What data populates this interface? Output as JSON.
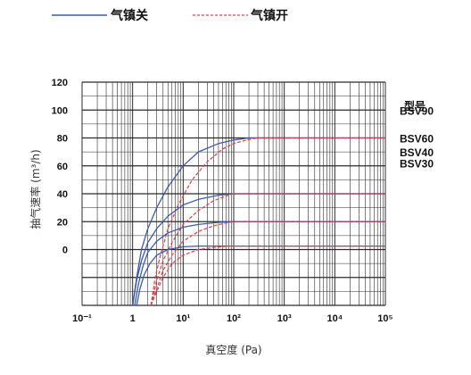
{
  "colors": {
    "off": "#3b5aa8",
    "on": "#e0424a",
    "grid": "#2b2b2b"
  },
  "chart_data": {
    "type": "line",
    "xscale": "log",
    "xlim": [
      0.1,
      100000
    ],
    "ylim": [
      -40,
      120
    ],
    "xticklabels": [
      "10⁻¹",
      "1",
      "10¹",
      "10²",
      "10³",
      "10⁴",
      "10⁵"
    ],
    "yticklabels": [
      {
        "label": "120",
        "value": 120
      },
      {
        "label": "100",
        "value": 100
      },
      {
        "label": "80",
        "value": 80
      },
      {
        "label": "60",
        "value": 60
      },
      {
        "label": "40",
        "value": 40
      },
      {
        "label": "20",
        "value": 20
      },
      {
        "label": "0",
        "value": 0
      }
    ],
    "xlabel": "真空度 (Pa)",
    "ylabel": "抽气速率 (m³/h)",
    "legend": {
      "placement": "top-left",
      "off_label": "气镇关",
      "on_label": "气镇开"
    },
    "model_header": "型号",
    "models": [
      {
        "label": "BSV90",
        "value": 100
      },
      {
        "label": "BSV60",
        "value": 80
      },
      {
        "label": "BSV40",
        "value": 70
      },
      {
        "label": "BSV30",
        "value": 62
      }
    ],
    "series": [
      {
        "gas_ballast": "off",
        "points": [
          [
            1.0,
            -40
          ],
          [
            1.2,
            -20
          ],
          [
            1.5,
            0
          ],
          [
            2,
            15
          ],
          [
            3,
            30
          ],
          [
            5,
            45
          ],
          [
            10,
            60
          ],
          [
            20,
            70
          ],
          [
            50,
            76
          ],
          [
            100,
            78.5
          ],
          [
            200,
            80
          ],
          [
            100000,
            80
          ]
        ]
      },
      {
        "gas_ballast": "on",
        "points": [
          [
            2.3,
            -40
          ],
          [
            2.8,
            -20
          ],
          [
            3.5,
            -5
          ],
          [
            5,
            15
          ],
          [
            8,
            32
          ],
          [
            15,
            50
          ],
          [
            30,
            63
          ],
          [
            60,
            72
          ],
          [
            100,
            76
          ],
          [
            200,
            79
          ],
          [
            300,
            80
          ],
          [
            100000,
            80
          ]
        ]
      },
      {
        "gas_ballast": "off",
        "points": [
          [
            1.0,
            -40
          ],
          [
            1.2,
            -22
          ],
          [
            1.5,
            -8
          ],
          [
            2,
            5
          ],
          [
            3,
            15
          ],
          [
            5,
            24
          ],
          [
            10,
            32
          ],
          [
            20,
            36
          ],
          [
            50,
            39
          ],
          [
            100,
            40
          ],
          [
            100000,
            40
          ]
        ]
      },
      {
        "gas_ballast": "on",
        "points": [
          [
            2.3,
            -40
          ],
          [
            3,
            -22
          ],
          [
            4,
            -8
          ],
          [
            6,
            5
          ],
          [
            10,
            18
          ],
          [
            20,
            28
          ],
          [
            40,
            35
          ],
          [
            80,
            39
          ],
          [
            100,
            40
          ],
          [
            100000,
            40
          ]
        ]
      },
      {
        "gas_ballast": "off",
        "points": [
          [
            1.1,
            -40
          ],
          [
            1.3,
            -25
          ],
          [
            1.6,
            -12
          ],
          [
            2,
            -2
          ],
          [
            3,
            6
          ],
          [
            5,
            12
          ],
          [
            10,
            16
          ],
          [
            20,
            18
          ],
          [
            50,
            19.5
          ],
          [
            100,
            20
          ],
          [
            100000,
            20
          ]
        ]
      },
      {
        "gas_ballast": "on",
        "points": [
          [
            2.3,
            -40
          ],
          [
            3,
            -28
          ],
          [
            4,
            -15
          ],
          [
            6,
            -4
          ],
          [
            10,
            6
          ],
          [
            20,
            13
          ],
          [
            40,
            17
          ],
          [
            70,
            19
          ],
          [
            100,
            20
          ],
          [
            100000,
            20
          ]
        ]
      },
      {
        "gas_ballast": "off",
        "points": [
          [
            1.2,
            -40
          ],
          [
            1.4,
            -28
          ],
          [
            1.7,
            -18
          ],
          [
            2.2,
            -10
          ],
          [
            3,
            -4
          ],
          [
            5,
            0
          ],
          [
            10,
            2
          ],
          [
            20,
            2.5
          ],
          [
            100000,
            2.5
          ]
        ]
      },
      {
        "gas_ballast": "on",
        "points": [
          [
            2.3,
            -40
          ],
          [
            3,
            -30
          ],
          [
            4,
            -20
          ],
          [
            6,
            -10
          ],
          [
            10,
            -4
          ],
          [
            20,
            0
          ],
          [
            40,
            1.5
          ],
          [
            80,
            2.5
          ],
          [
            100000,
            2.5
          ]
        ]
      }
    ]
  }
}
